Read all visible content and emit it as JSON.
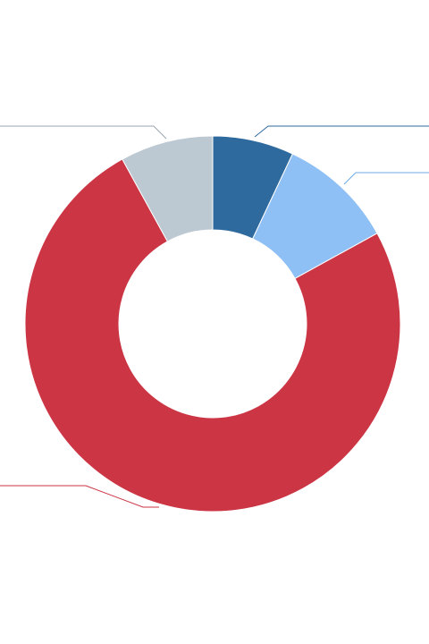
{
  "chart_data": {
    "type": "pie",
    "categories": [
      null,
      null,
      null,
      null
    ],
    "values": [
      7,
      10,
      75,
      8
    ],
    "colors": [
      "#2e6a9e",
      "#8fc0f5",
      "#cb3544",
      "#bcc8d2"
    ]
  }
}
